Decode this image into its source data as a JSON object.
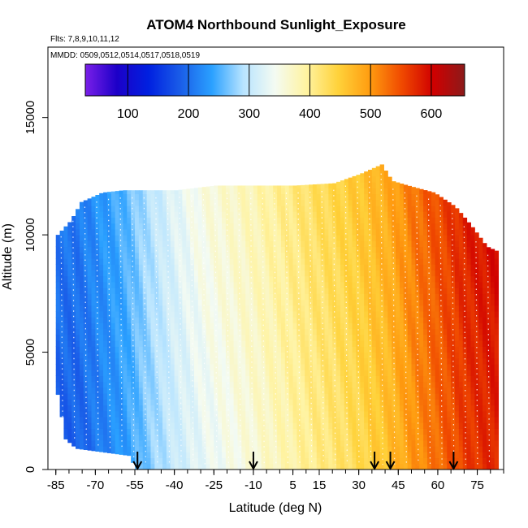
{
  "chart_data": {
    "type": "heatmap",
    "title": "ATOM4 Northbound Sunlight_Exposure",
    "flights_label": "Flts: 7,8,9,10,11,12",
    "dates_label": "MMDD: 0509,0512,0514,0517,0518,0519",
    "xlabel": "Latitude (deg N)",
    "ylabel": "Altitude (m)",
    "xlim": [
      -88,
      85
    ],
    "ylim": [
      0,
      18000
    ],
    "x_ticks": [
      "-85",
      "-70",
      "-55",
      "-40",
      "-25",
      "-10",
      "5",
      "15",
      "30",
      "45",
      "60",
      "75"
    ],
    "x_tick_values": [
      -85,
      -70,
      -55,
      -40,
      -25,
      -10,
      5,
      15,
      30,
      45,
      60,
      75
    ],
    "x_minor_step": 5,
    "y_ticks": [
      "0",
      "5000",
      "10000",
      "15000"
    ],
    "y_tick_values": [
      0,
      5000,
      10000,
      15000
    ],
    "colorbar": {
      "min": 30,
      "max": 655,
      "ticks": [
        "100",
        "200",
        "300",
        "400",
        "500",
        "600"
      ],
      "tick_values": [
        100,
        200,
        300,
        400,
        500,
        600
      ],
      "colors": [
        "#7a1fe8",
        "#1c00c8",
        "#0020e0",
        "#1a5de8",
        "#2aa0ff",
        "#b8e4ff",
        "#f4fbf2",
        "#fff3a0",
        "#ffd23a",
        "#ff9c10",
        "#f04a00",
        "#d00000",
        "#8c1a1a"
      ]
    },
    "profile_arrows_latitude": [
      -54,
      -10,
      36,
      42,
      66
    ],
    "envelope_top_altitude": [
      {
        "lat": -85,
        "alt": 10000
      },
      {
        "lat": -80,
        "alt": 10600
      },
      {
        "lat": -76,
        "alt": 11400
      },
      {
        "lat": -68,
        "alt": 11800
      },
      {
        "lat": -60,
        "alt": 11900
      },
      {
        "lat": -50,
        "alt": 11900
      },
      {
        "lat": -40,
        "alt": 11900
      },
      {
        "lat": -25,
        "alt": 12100
      },
      {
        "lat": -10,
        "alt": 12100
      },
      {
        "lat": 5,
        "alt": 12100
      },
      {
        "lat": 20,
        "alt": 12200
      },
      {
        "lat": 30,
        "alt": 12600
      },
      {
        "lat": 38,
        "alt": 13000
      },
      {
        "lat": 42,
        "alt": 12300
      },
      {
        "lat": 48,
        "alt": 12100
      },
      {
        "lat": 58,
        "alt": 11800
      },
      {
        "lat": 66,
        "alt": 11200
      },
      {
        "lat": 72,
        "alt": 10400
      },
      {
        "lat": 78,
        "alt": 9500
      },
      {
        "lat": 82,
        "alt": 9300
      }
    ],
    "envelope_bottom_altitude": [
      {
        "lat": -85,
        "alt": 3200
      },
      {
        "lat": -82,
        "alt": 1300
      },
      {
        "lat": -78,
        "alt": 900
      },
      {
        "lat": -58,
        "alt": 600
      },
      {
        "lat": -55,
        "alt": 0
      },
      {
        "lat": 82,
        "alt": 0
      }
    ],
    "sunlight_by_latitude": [
      {
        "lat": -85,
        "value": 185
      },
      {
        "lat": -78,
        "value": 185
      },
      {
        "lat": -70,
        "value": 205
      },
      {
        "lat": -60,
        "value": 230
      },
      {
        "lat": -50,
        "value": 270
      },
      {
        "lat": -40,
        "value": 305
      },
      {
        "lat": -30,
        "value": 330
      },
      {
        "lat": -20,
        "value": 345
      },
      {
        "lat": -10,
        "value": 360
      },
      {
        "lat": 0,
        "value": 380
      },
      {
        "lat": 10,
        "value": 400
      },
      {
        "lat": 20,
        "value": 415
      },
      {
        "lat": 30,
        "value": 435
      },
      {
        "lat": 40,
        "value": 460
      },
      {
        "lat": 50,
        "value": 500
      },
      {
        "lat": 60,
        "value": 530
      },
      {
        "lat": 70,
        "value": 560
      },
      {
        "lat": 80,
        "value": 575
      }
    ]
  }
}
